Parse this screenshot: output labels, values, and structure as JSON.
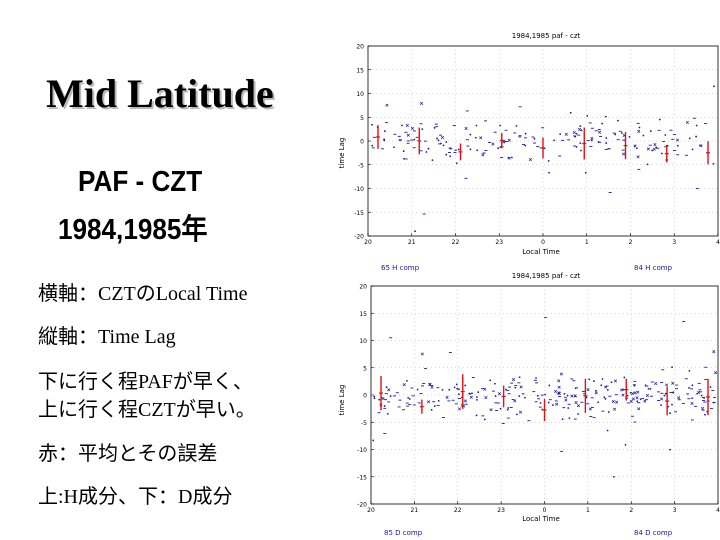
{
  "slide": {
    "title": "Mid Latitude",
    "subtitle_line1": "PAF - CZT",
    "subtitle_line2": "1984,1985年",
    "notes": [
      "横軸：CZTのLocal Time",
      "縦軸：Time Lag",
      "下に行く程PAFが早く、",
      "上に行く程CZTが早い。",
      "赤：平均とその誤差",
      "上:H成分、下：D成分"
    ]
  },
  "colors": {
    "scatter": "#1a1aa8",
    "mean": "#e01010",
    "axis": "#000000",
    "grid": "#9a9a9a"
  },
  "chart_data": [
    {
      "type": "scatter",
      "title": "1984,1985 paf - czt",
      "xlabel": "Local Time",
      "ylabel": "time Lag",
      "xlim": [
        20,
        4
      ],
      "ylim": [
        -20,
        20
      ],
      "x_ticks": [
        "20",
        "21",
        "22",
        "23",
        "0",
        "1",
        "2",
        "3",
        "4"
      ],
      "y_ticks": [
        "20",
        "15",
        "10",
        "5",
        "0",
        "-5",
        "-10",
        "-15",
        "-20"
      ],
      "legend": [
        "65 H comp",
        "84 H comp"
      ],
      "component": "H"
    },
    {
      "type": "scatter",
      "title": "1984,1985 paf - czt",
      "xlabel": "Local Time",
      "ylabel": "time Lag",
      "xlim": [
        20,
        4
      ],
      "ylim": [
        -20,
        20
      ],
      "x_ticks": [
        "20",
        "21",
        "22",
        "23",
        "0",
        "1",
        "2",
        "3",
        "4"
      ],
      "y_ticks": [
        "20",
        "15",
        "10",
        "5",
        "0",
        "-5",
        "-10",
        "-15",
        "-20"
      ],
      "legend": [
        "85 D comp",
        "84 D comp"
      ],
      "component": "D"
    }
  ]
}
